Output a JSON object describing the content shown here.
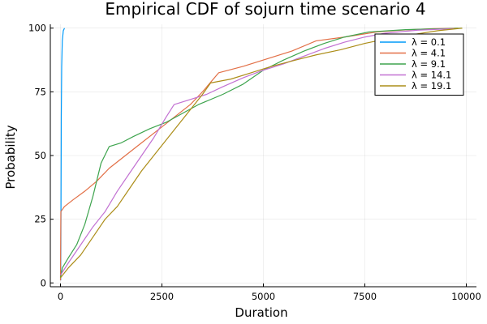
{
  "chart_data": {
    "type": "line",
    "title": "Empirical CDF of sojurn time scenario 4",
    "xlabel": "Duration",
    "ylabel": "Probability",
    "xlim": [
      -250,
      10250
    ],
    "ylim": [
      -1.5,
      101.5
    ],
    "xticks": [
      0,
      2500,
      5000,
      7500,
      10000
    ],
    "xtick_labels": [
      "0",
      "2500",
      "5000",
      "7500",
      "10000"
    ],
    "yticks": [
      0,
      25,
      50,
      75,
      100
    ],
    "ytick_labels": [
      "0",
      "25",
      "50",
      "75",
      "100"
    ],
    "grid": true,
    "legend_position": "top-right",
    "series": [
      {
        "name": "λ = 0.1",
        "color": "#009af9",
        "points": [
          [
            5,
            1
          ],
          [
            10,
            15
          ],
          [
            15,
            40
          ],
          [
            20,
            65
          ],
          [
            30,
            85
          ],
          [
            45,
            95
          ],
          [
            70,
            99
          ],
          [
            100,
            100
          ]
        ]
      },
      {
        "name": "λ = 4.1",
        "color": "#e26f46",
        "points": [
          [
            0,
            1
          ],
          [
            10,
            28
          ],
          [
            100,
            30
          ],
          [
            300,
            32.5
          ],
          [
            600,
            36
          ],
          [
            900,
            40
          ],
          [
            1200,
            45
          ],
          [
            1600,
            50
          ],
          [
            2000,
            55
          ],
          [
            2400,
            60
          ],
          [
            2800,
            65
          ],
          [
            3200,
            70
          ],
          [
            3500,
            75
          ],
          [
            3900,
            82.5
          ],
          [
            4500,
            85
          ],
          [
            5000,
            87.5
          ],
          [
            5700,
            91
          ],
          [
            6300,
            95
          ],
          [
            7000,
            96.5
          ],
          [
            7800,
            98.5
          ],
          [
            8500,
            99.3
          ],
          [
            9200,
            99.8
          ],
          [
            9800,
            100
          ]
        ]
      },
      {
        "name": "λ = 9.1",
        "color": "#3ea44e",
        "points": [
          [
            0,
            2
          ],
          [
            50,
            6
          ],
          [
            200,
            10
          ],
          [
            400,
            15
          ],
          [
            600,
            23
          ],
          [
            800,
            34
          ],
          [
            1000,
            47
          ],
          [
            1200,
            53.5
          ],
          [
            1500,
            55
          ],
          [
            1800,
            57.5
          ],
          [
            2200,
            60.5
          ],
          [
            2600,
            63
          ],
          [
            3000,
            66.5
          ],
          [
            3400,
            70
          ],
          [
            4000,
            74
          ],
          [
            4500,
            78
          ],
          [
            5000,
            83.5
          ],
          [
            5500,
            87.5
          ],
          [
            6000,
            91
          ],
          [
            6500,
            94
          ],
          [
            7000,
            96.5
          ],
          [
            7600,
            98.5
          ],
          [
            8500,
            99.4
          ],
          [
            9500,
            99.8
          ],
          [
            9900,
            100
          ]
        ]
      },
      {
        "name": "λ = 14.1",
        "color": "#c271d2",
        "points": [
          [
            0,
            3
          ],
          [
            200,
            8
          ],
          [
            500,
            15
          ],
          [
            800,
            22
          ],
          [
            1100,
            28
          ],
          [
            1400,
            36
          ],
          [
            1700,
            43
          ],
          [
            2000,
            50
          ],
          [
            2300,
            57
          ],
          [
            2600,
            65
          ],
          [
            2800,
            70
          ],
          [
            3200,
            72
          ],
          [
            3600,
            74
          ],
          [
            4000,
            77
          ],
          [
            4500,
            80.5
          ],
          [
            5000,
            83.5
          ],
          [
            5500,
            86
          ],
          [
            6000,
            89
          ],
          [
            6500,
            92
          ],
          [
            7000,
            94.5
          ],
          [
            7500,
            96.5
          ],
          [
            8000,
            98
          ],
          [
            8800,
            99.2
          ],
          [
            9700,
            99.8
          ]
        ]
      },
      {
        "name": "λ = 19.1",
        "color": "#ac8d18",
        "points": [
          [
            0,
            2
          ],
          [
            200,
            6
          ],
          [
            500,
            11
          ],
          [
            800,
            18
          ],
          [
            1100,
            25
          ],
          [
            1400,
            30
          ],
          [
            1700,
            37
          ],
          [
            2000,
            44
          ],
          [
            2300,
            50
          ],
          [
            2600,
            56
          ],
          [
            2900,
            62
          ],
          [
            3200,
            68
          ],
          [
            3500,
            74
          ],
          [
            3700,
            78.5
          ],
          [
            4200,
            80
          ],
          [
            4700,
            82.5
          ],
          [
            5200,
            85
          ],
          [
            5800,
            87.5
          ],
          [
            6300,
            89.5
          ],
          [
            6900,
            91.5
          ],
          [
            7500,
            94
          ],
          [
            8100,
            96
          ],
          [
            8700,
            97.5
          ],
          [
            9300,
            99
          ],
          [
            9900,
            100
          ]
        ]
      }
    ]
  }
}
